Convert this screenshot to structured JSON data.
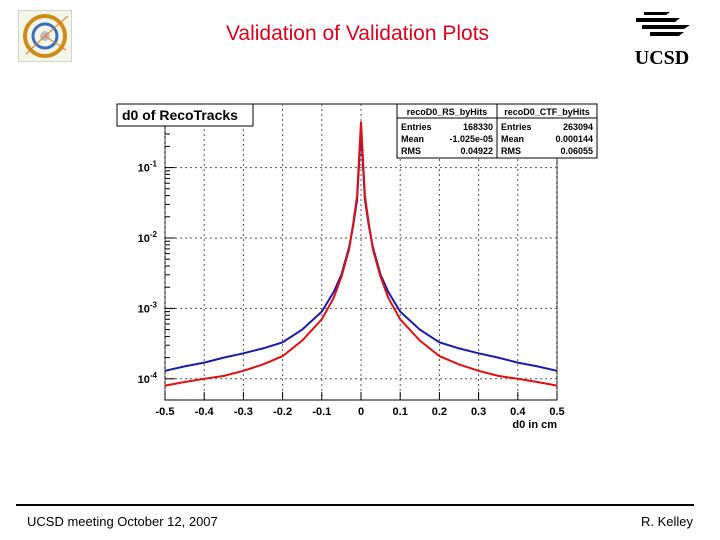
{
  "slide": {
    "title": "Validation of Validation Plots",
    "footer_left": "UCSD meeting October 12, 2007",
    "footer_right": "R. Kelley",
    "logo_text": "UCSD",
    "title_color": "#e0001b"
  },
  "chart_data": {
    "type": "line",
    "title": "d0 of RecoTracks",
    "xlabel": "d0 in cm",
    "ylabel": "",
    "xlim": [
      -0.5,
      0.5
    ],
    "ylim": [
      5e-05,
      0.8
    ],
    "log_y": true,
    "grid": true,
    "x_ticks": [
      "-0.5",
      "-0.4",
      "-0.3",
      "-0.2",
      "-0.1",
      "0",
      "0.1",
      "0.2",
      "0.3",
      "0.4",
      "0.5"
    ],
    "y_ticks": [
      {
        "base": "10",
        "exp": "-4",
        "value": 0.0001
      },
      {
        "base": "10",
        "exp": "-3",
        "value": 0.001
      },
      {
        "base": "10",
        "exp": "-2",
        "value": 0.01
      },
      {
        "base": "10",
        "exp": "-1",
        "value": 0.1
      }
    ],
    "x": [
      -0.5,
      -0.45,
      -0.4,
      -0.35,
      -0.3,
      -0.25,
      -0.2,
      -0.15,
      -0.1,
      -0.07,
      -0.05,
      -0.03,
      -0.02,
      -0.01,
      0,
      0.01,
      0.02,
      0.03,
      0.05,
      0.07,
      0.1,
      0.15,
      0.2,
      0.25,
      0.3,
      0.35,
      0.4,
      0.45,
      0.5
    ],
    "series": [
      {
        "name": "recoD0_RS_byHits",
        "color": "#1a1ab0",
        "stats": [
          {
            "label": "Entries",
            "value": "168330"
          },
          {
            "label": "Mean",
            "value": "-1.025e-05"
          },
          {
            "label": "RMS",
            "value": "0.04922"
          }
        ],
        "values": [
          0.00013,
          0.00015,
          0.00017,
          0.0002,
          0.00023,
          0.00027,
          0.00033,
          0.0005,
          0.0009,
          0.0017,
          0.003,
          0.0075,
          0.015,
          0.035,
          0.35,
          0.035,
          0.015,
          0.0075,
          0.003,
          0.0017,
          0.0009,
          0.0005,
          0.00033,
          0.00027,
          0.00023,
          0.0002,
          0.00017,
          0.00015,
          0.00013
        ]
      },
      {
        "name": "recoD0_CTF_byHits",
        "color": "#e01010",
        "stats": [
          {
            "label": "Entries",
            "value": "263094"
          },
          {
            "label": "Mean",
            "value": "0.000144"
          },
          {
            "label": "RMS",
            "value": "0.06055"
          }
        ],
        "values": [
          8e-05,
          9e-05,
          0.0001,
          0.00011,
          0.00013,
          0.00016,
          0.00021,
          0.00035,
          0.0007,
          0.0014,
          0.0028,
          0.007,
          0.016,
          0.04,
          0.45,
          0.04,
          0.016,
          0.007,
          0.0028,
          0.0014,
          0.0007,
          0.00035,
          0.00021,
          0.00016,
          0.00013,
          0.00011,
          0.0001,
          9e-05,
          8e-05
        ]
      }
    ]
  }
}
